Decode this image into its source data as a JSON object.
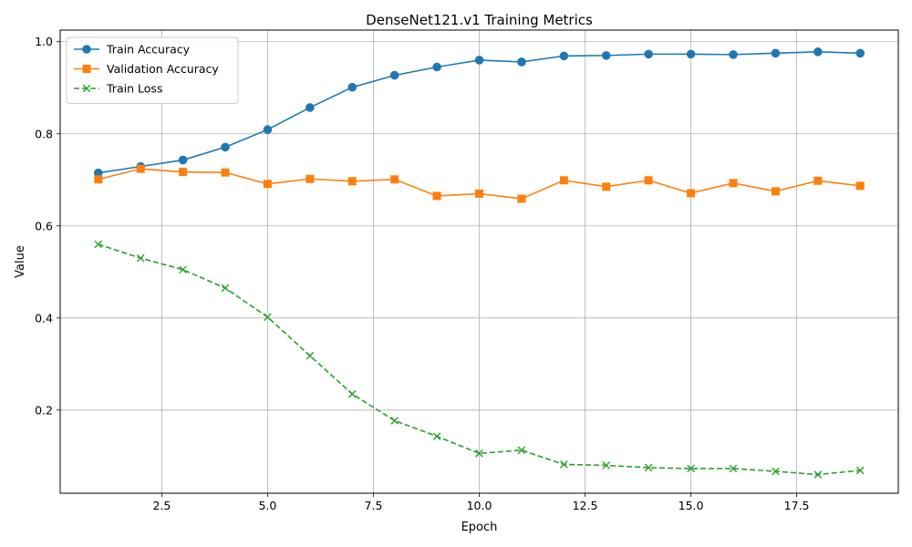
{
  "chart_data": {
    "type": "line",
    "title": "DenseNet121.v1 Training Metrics",
    "xlabel": "Epoch",
    "ylabel": "Value",
    "xlim": [
      0.1,
      19.9
    ],
    "ylim": [
      0.0195,
      1.0252
    ],
    "xticks": [
      2.5,
      5.0,
      7.5,
      10.0,
      12.5,
      15.0,
      17.5
    ],
    "xtick_labels": [
      "2.5",
      "5.0",
      "7.5",
      "10.0",
      "12.5",
      "15.0",
      "17.5"
    ],
    "yticks": [
      0.2,
      0.4,
      0.6,
      0.8,
      1.0
    ],
    "ytick_labels": [
      "0.2",
      "0.4",
      "0.6",
      "0.8",
      "1.0"
    ],
    "grid": true,
    "legend_position": "top-left",
    "x": [
      1,
      2,
      3,
      4,
      5,
      6,
      7,
      8,
      9,
      10,
      11,
      12,
      13,
      14,
      15,
      16,
      17,
      18,
      19
    ],
    "series": [
      {
        "name": "Train Accuracy",
        "color": "#1f77b4",
        "marker": "circle",
        "linestyle": "solid",
        "values": [
          0.715,
          0.729,
          0.743,
          0.771,
          0.809,
          0.857,
          0.901,
          0.927,
          0.945,
          0.96,
          0.956,
          0.969,
          0.97,
          0.973,
          0.973,
          0.972,
          0.975,
          0.978,
          0.975
        ]
      },
      {
        "name": "Validation Accuracy",
        "color": "#ff7f0e",
        "marker": "square",
        "linestyle": "solid",
        "values": [
          0.701,
          0.724,
          0.717,
          0.716,
          0.691,
          0.702,
          0.697,
          0.701,
          0.665,
          0.67,
          0.659,
          0.699,
          0.685,
          0.699,
          0.671,
          0.693,
          0.675,
          0.698,
          0.687
        ]
      },
      {
        "name": "Train Loss",
        "color": "#2ca02c",
        "marker": "x",
        "linestyle": "dashed",
        "values": [
          0.56,
          0.53,
          0.505,
          0.465,
          0.402,
          0.318,
          0.235,
          0.177,
          0.143,
          0.106,
          0.113,
          0.082,
          0.08,
          0.075,
          0.073,
          0.073,
          0.067,
          0.06,
          0.069
        ]
      }
    ]
  }
}
